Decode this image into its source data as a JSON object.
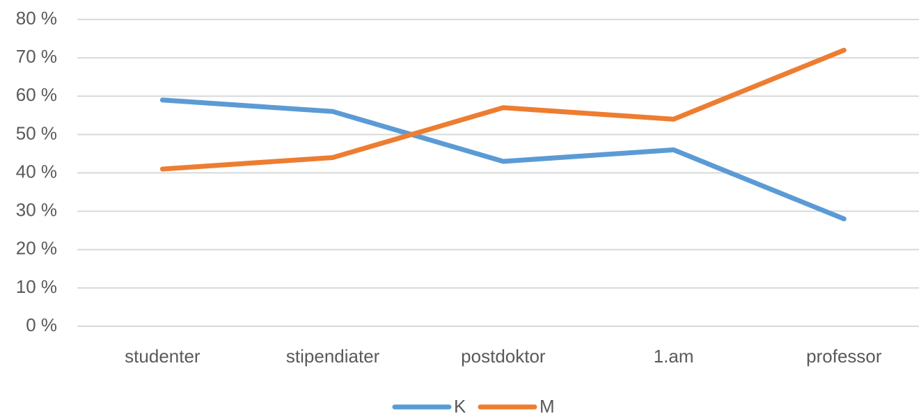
{
  "chart_data": {
    "type": "line",
    "categories": [
      "studenter",
      "stipendiater",
      "postdoktor",
      "1.am",
      "professor"
    ],
    "series": [
      {
        "name": "K",
        "color": "#5b9bd5",
        "values": [
          59,
          56,
          43,
          46,
          28
        ]
      },
      {
        "name": "M",
        "color": "#ed7d31",
        "values": [
          41,
          44,
          57,
          54,
          72
        ]
      }
    ],
    "ylim": [
      0,
      80
    ],
    "yticks": [
      {
        "value": 0,
        "label": "0 %"
      },
      {
        "value": 10,
        "label": "10 %"
      },
      {
        "value": 20,
        "label": "20 %"
      },
      {
        "value": 30,
        "label": "30 %"
      },
      {
        "value": 40,
        "label": "40 %"
      },
      {
        "value": 50,
        "label": "50 %"
      },
      {
        "value": 60,
        "label": "60 %"
      },
      {
        "value": 70,
        "label": "70 %"
      },
      {
        "value": 80,
        "label": "80 %"
      }
    ],
    "grid": true,
    "legend": "bottom"
  }
}
